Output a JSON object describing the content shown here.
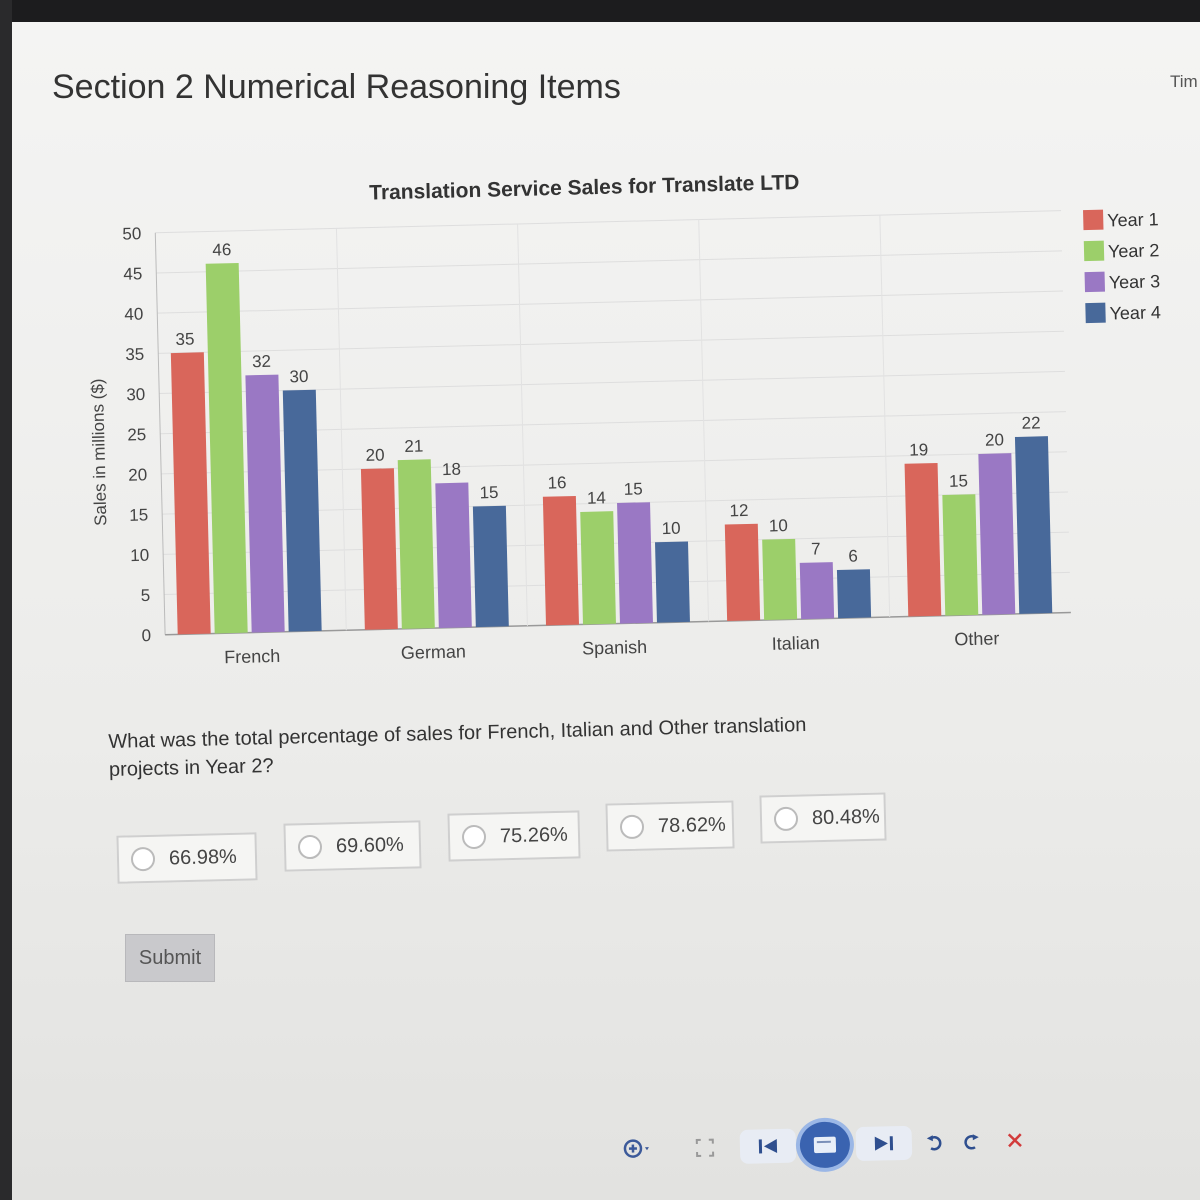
{
  "page": {
    "title": "Section 2 Numerical Reasoning Items",
    "timer_label": "Tim"
  },
  "chart_data": {
    "type": "bar",
    "title": "Translation Service Sales for Translate LTD",
    "xlabel": "",
    "ylabel": "Sales in millions ($)",
    "ylim": [
      0,
      50
    ],
    "yticks": [
      0,
      5,
      10,
      15,
      20,
      25,
      30,
      35,
      40,
      45,
      50
    ],
    "categories": [
      "French",
      "German",
      "Spanish",
      "Italian",
      "Other"
    ],
    "series": [
      {
        "name": "Year 1",
        "color": "#d9665b",
        "values": [
          35,
          20,
          16,
          12,
          19
        ]
      },
      {
        "name": "Year 2",
        "color": "#9ccf6a",
        "values": [
          46,
          21,
          14,
          10,
          15
        ]
      },
      {
        "name": "Year 3",
        "color": "#9a78c4",
        "values": [
          32,
          18,
          15,
          7,
          20
        ]
      },
      {
        "name": "Year 4",
        "color": "#48699a",
        "values": [
          30,
          15,
          10,
          6,
          22
        ]
      }
    ],
    "legend_position": "right",
    "grid": true
  },
  "question": {
    "text": "What was the total percentage of sales for French, Italian and Other translation projects in Year 2?",
    "choices": [
      "66.98%",
      "69.60%",
      "75.26%",
      "78.62%",
      "80.48%"
    ]
  },
  "submit_label": "Submit",
  "toolbar": {
    "icons": [
      "zoom-in-icon",
      "fullscreen-icon",
      "previous-icon",
      "slide-icon",
      "next-icon",
      "undo-icon",
      "redo-icon",
      "close-icon"
    ]
  }
}
